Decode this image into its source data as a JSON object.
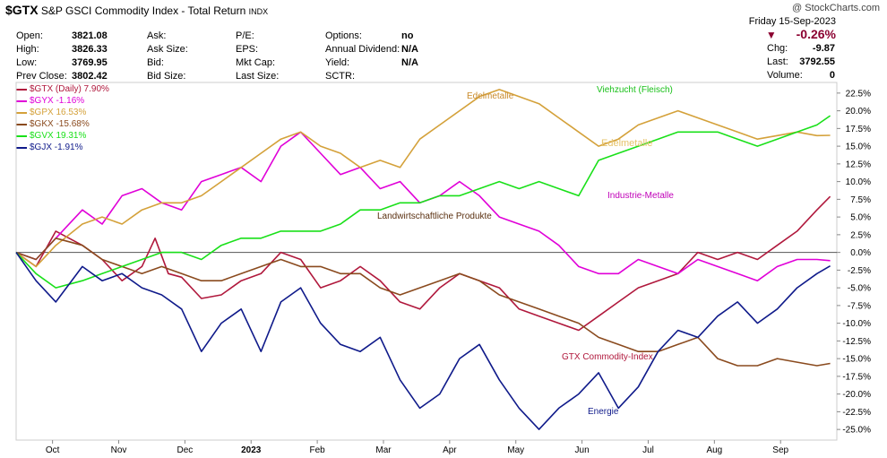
{
  "header": {
    "symbol": "$GTX",
    "name": "S&P GSCI Commodity Index - Total Return",
    "exchange": "INDX",
    "watermark": "@ StockCharts.com"
  },
  "quote": {
    "fields": [
      {
        "label": "Open:",
        "value": "3821.08"
      },
      {
        "label": "High:",
        "value": "3826.33"
      },
      {
        "label": "Low:",
        "value": "3769.95"
      },
      {
        "label": "Prev Close:",
        "value": "3802.42"
      },
      {
        "label": "Ask:",
        "value": ""
      },
      {
        "label": "Ask Size:",
        "value": ""
      },
      {
        "label": "Bid:",
        "value": ""
      },
      {
        "label": "Bid Size:",
        "value": ""
      },
      {
        "label": "P/E:",
        "value": ""
      },
      {
        "label": "EPS:",
        "value": ""
      },
      {
        "label": "Mkt Cap:",
        "value": ""
      },
      {
        "label": "Last Size:",
        "value": ""
      },
      {
        "label": "Options:",
        "value": "no"
      },
      {
        "label": "Annual Dividend:",
        "value": "N/A"
      },
      {
        "label": "Yield:",
        "value": "N/A"
      },
      {
        "label": "SCTR:",
        "value": ""
      }
    ],
    "date": "Friday  15-Sep-2023",
    "change_pct": "-0.26%",
    "chg_label": "Chg:",
    "chg_value": "-9.87",
    "last_label": "Last:",
    "last_value": "3792.55",
    "volume_label": "Volume:",
    "volume_value": "0",
    "down_color": "#8b0030"
  },
  "chart_data": {
    "type": "line",
    "ylabel": "",
    "xlabel": "",
    "ylim": [
      -26.5,
      24
    ],
    "grid": false,
    "legend_position": "top-left",
    "yticks": [
      "22.5%",
      "20.0%",
      "17.5%",
      "15.0%",
      "12.5%",
      "10.0%",
      "7.5%",
      "5.0%",
      "2.5%",
      "0.0%",
      "-2.5%",
      "-5.0%",
      "-7.5%",
      "-10.0%",
      "-12.5%",
      "-15.0%",
      "-17.5%",
      "-20.0%",
      "-22.5%",
      "-25.0%"
    ],
    "ytick_values": [
      22.5,
      20,
      17.5,
      15,
      12.5,
      10,
      7.5,
      5,
      2.5,
      0,
      -2.5,
      -5,
      -7.5,
      -10,
      -12.5,
      -15,
      -17.5,
      -20,
      -22.5,
      -25
    ],
    "xlim": [
      0,
      12.4
    ],
    "xticks": [
      {
        "label": "Oct",
        "x": 0.55
      },
      {
        "label": "Nov",
        "x": 1.55
      },
      {
        "label": "Dec",
        "x": 2.55
      },
      {
        "label": "2023",
        "x": 3.55
      },
      {
        "label": "Feb",
        "x": 4.55
      },
      {
        "label": "Mar",
        "x": 5.55
      },
      {
        "label": "Apr",
        "x": 6.55
      },
      {
        "label": "May",
        "x": 7.55
      },
      {
        "label": "Jun",
        "x": 8.55
      },
      {
        "label": "Jul",
        "x": 9.55
      },
      {
        "label": "Aug",
        "x": 10.55
      },
      {
        "label": "Sep",
        "x": 11.55
      }
    ],
    "series": [
      {
        "name": "$GTX (Daily) 7.90%",
        "color": "#b0183c",
        "points": [
          [
            0,
            0
          ],
          [
            0.3,
            -2
          ],
          [
            0.6,
            3
          ],
          [
            1.0,
            1
          ],
          [
            1.3,
            -1
          ],
          [
            1.6,
            -4
          ],
          [
            1.9,
            -2
          ],
          [
            2.1,
            2
          ],
          [
            2.3,
            -3
          ],
          [
            2.5,
            -3.5
          ],
          [
            2.8,
            -6.5
          ],
          [
            3.1,
            -6
          ],
          [
            3.4,
            -4
          ],
          [
            3.7,
            -3
          ],
          [
            4.0,
            0
          ],
          [
            4.3,
            -1
          ],
          [
            4.6,
            -5
          ],
          [
            4.9,
            -4
          ],
          [
            5.2,
            -2
          ],
          [
            5.5,
            -4
          ],
          [
            5.8,
            -7
          ],
          [
            6.1,
            -8
          ],
          [
            6.4,
            -5
          ],
          [
            6.7,
            -3
          ],
          [
            7.0,
            -4
          ],
          [
            7.3,
            -5
          ],
          [
            7.6,
            -8
          ],
          [
            7.9,
            -9
          ],
          [
            8.2,
            -10
          ],
          [
            8.5,
            -11
          ],
          [
            8.8,
            -9
          ],
          [
            9.1,
            -7
          ],
          [
            9.4,
            -5
          ],
          [
            9.7,
            -4
          ],
          [
            10.0,
            -3
          ],
          [
            10.3,
            0
          ],
          [
            10.6,
            -1
          ],
          [
            10.9,
            0
          ],
          [
            11.2,
            -1
          ],
          [
            11.5,
            1
          ],
          [
            11.8,
            3
          ],
          [
            12.1,
            6
          ],
          [
            12.3,
            7.9
          ]
        ]
      },
      {
        "name": "$GYX -1.16%",
        "color": "#e000d8",
        "points": [
          [
            0,
            0
          ],
          [
            0.3,
            -1
          ],
          [
            0.6,
            2
          ],
          [
            1.0,
            6
          ],
          [
            1.3,
            4
          ],
          [
            1.6,
            8
          ],
          [
            1.9,
            9
          ],
          [
            2.2,
            7
          ],
          [
            2.5,
            6
          ],
          [
            2.8,
            10
          ],
          [
            3.1,
            11
          ],
          [
            3.4,
            12
          ],
          [
            3.7,
            10
          ],
          [
            4.0,
            15
          ],
          [
            4.3,
            17
          ],
          [
            4.6,
            14
          ],
          [
            4.9,
            11
          ],
          [
            5.2,
            12
          ],
          [
            5.5,
            9
          ],
          [
            5.8,
            10
          ],
          [
            6.1,
            7
          ],
          [
            6.4,
            8
          ],
          [
            6.7,
            10
          ],
          [
            7.0,
            8
          ],
          [
            7.3,
            5
          ],
          [
            7.6,
            4
          ],
          [
            7.9,
            3
          ],
          [
            8.2,
            1
          ],
          [
            8.5,
            -2
          ],
          [
            8.8,
            -3
          ],
          [
            9.1,
            -3
          ],
          [
            9.4,
            -1
          ],
          [
            9.7,
            -2
          ],
          [
            10.0,
            -3
          ],
          [
            10.3,
            -1
          ],
          [
            10.6,
            -2
          ],
          [
            10.9,
            -3
          ],
          [
            11.2,
            -4
          ],
          [
            11.5,
            -2
          ],
          [
            11.8,
            -1
          ],
          [
            12.1,
            -1
          ],
          [
            12.3,
            -1.16
          ]
        ]
      },
      {
        "name": "$GPX 16.53%",
        "color": "#d4a13a",
        "points": [
          [
            0,
            0
          ],
          [
            0.3,
            -2
          ],
          [
            0.6,
            1
          ],
          [
            1.0,
            4
          ],
          [
            1.3,
            5
          ],
          [
            1.6,
            4
          ],
          [
            1.9,
            6
          ],
          [
            2.2,
            7
          ],
          [
            2.5,
            7
          ],
          [
            2.8,
            8
          ],
          [
            3.1,
            10
          ],
          [
            3.4,
            12
          ],
          [
            3.7,
            14
          ],
          [
            4.0,
            16
          ],
          [
            4.3,
            17
          ],
          [
            4.6,
            15
          ],
          [
            4.9,
            14
          ],
          [
            5.2,
            12
          ],
          [
            5.5,
            13
          ],
          [
            5.8,
            12
          ],
          [
            6.1,
            16
          ],
          [
            6.4,
            18
          ],
          [
            6.7,
            20
          ],
          [
            7.0,
            22
          ],
          [
            7.3,
            23
          ],
          [
            7.6,
            22
          ],
          [
            7.9,
            21
          ],
          [
            8.2,
            19
          ],
          [
            8.5,
            17
          ],
          [
            8.8,
            15
          ],
          [
            9.1,
            16
          ],
          [
            9.4,
            18
          ],
          [
            9.7,
            19
          ],
          [
            10.0,
            20
          ],
          [
            10.3,
            19
          ],
          [
            10.6,
            18
          ],
          [
            10.9,
            17
          ],
          [
            11.2,
            16
          ],
          [
            11.5,
            16.5
          ],
          [
            11.8,
            17
          ],
          [
            12.1,
            16.5
          ],
          [
            12.3,
            16.53
          ]
        ]
      },
      {
        "name": "$GKX -15.68%",
        "color": "#8a4a1e",
        "points": [
          [
            0,
            0
          ],
          [
            0.3,
            -1
          ],
          [
            0.6,
            2
          ],
          [
            1.0,
            1
          ],
          [
            1.3,
            -1
          ],
          [
            1.6,
            -2
          ],
          [
            1.9,
            -3
          ],
          [
            2.2,
            -2
          ],
          [
            2.5,
            -3
          ],
          [
            2.8,
            -4
          ],
          [
            3.1,
            -4
          ],
          [
            3.4,
            -3
          ],
          [
            3.7,
            -2
          ],
          [
            4.0,
            -1
          ],
          [
            4.3,
            -2
          ],
          [
            4.6,
            -2
          ],
          [
            4.9,
            -3
          ],
          [
            5.2,
            -3
          ],
          [
            5.5,
            -5
          ],
          [
            5.8,
            -6
          ],
          [
            6.1,
            -5
          ],
          [
            6.4,
            -4
          ],
          [
            6.7,
            -3
          ],
          [
            7.0,
            -4
          ],
          [
            7.3,
            -6
          ],
          [
            7.6,
            -7
          ],
          [
            7.9,
            -8
          ],
          [
            8.2,
            -9
          ],
          [
            8.5,
            -10
          ],
          [
            8.8,
            -12
          ],
          [
            9.1,
            -13
          ],
          [
            9.4,
            -14
          ],
          [
            9.7,
            -14
          ],
          [
            10.0,
            -13
          ],
          [
            10.3,
            -12
          ],
          [
            10.6,
            -15
          ],
          [
            10.9,
            -16
          ],
          [
            11.2,
            -16
          ],
          [
            11.5,
            -15
          ],
          [
            11.8,
            -15.5
          ],
          [
            12.1,
            -16
          ],
          [
            12.3,
            -15.68
          ]
        ]
      },
      {
        "name": "$GVX 19.31%",
        "color": "#19e019",
        "points": [
          [
            0,
            0
          ],
          [
            0.3,
            -3
          ],
          [
            0.6,
            -5
          ],
          [
            1.0,
            -4
          ],
          [
            1.3,
            -3
          ],
          [
            1.6,
            -2
          ],
          [
            1.9,
            -1
          ],
          [
            2.2,
            0
          ],
          [
            2.5,
            0
          ],
          [
            2.8,
            -1
          ],
          [
            3.1,
            1
          ],
          [
            3.4,
            2
          ],
          [
            3.7,
            2
          ],
          [
            4.0,
            3
          ],
          [
            4.3,
            3
          ],
          [
            4.6,
            3
          ],
          [
            4.9,
            4
          ],
          [
            5.2,
            6
          ],
          [
            5.5,
            6
          ],
          [
            5.8,
            7
          ],
          [
            6.1,
            7
          ],
          [
            6.4,
            8
          ],
          [
            6.7,
            8
          ],
          [
            7.0,
            9
          ],
          [
            7.3,
            10
          ],
          [
            7.6,
            9
          ],
          [
            7.9,
            10
          ],
          [
            8.2,
            9
          ],
          [
            8.5,
            8
          ],
          [
            8.8,
            13
          ],
          [
            9.1,
            14
          ],
          [
            9.4,
            15
          ],
          [
            9.7,
            16
          ],
          [
            10.0,
            17
          ],
          [
            10.3,
            17
          ],
          [
            10.6,
            17
          ],
          [
            10.9,
            16
          ],
          [
            11.2,
            15
          ],
          [
            11.5,
            16
          ],
          [
            11.8,
            17
          ],
          [
            12.1,
            18
          ],
          [
            12.3,
            19.31
          ]
        ]
      },
      {
        "name": "$GJX -1.91%",
        "color": "#0f1a8a",
        "points": [
          [
            0,
            0
          ],
          [
            0.3,
            -4
          ],
          [
            0.6,
            -7
          ],
          [
            1.0,
            -2
          ],
          [
            1.3,
            -4
          ],
          [
            1.6,
            -3
          ],
          [
            1.9,
            -5
          ],
          [
            2.2,
            -6
          ],
          [
            2.5,
            -8
          ],
          [
            2.8,
            -14
          ],
          [
            3.1,
            -10
          ],
          [
            3.4,
            -8
          ],
          [
            3.7,
            -14
          ],
          [
            4.0,
            -7
          ],
          [
            4.3,
            -5
          ],
          [
            4.6,
            -10
          ],
          [
            4.9,
            -13
          ],
          [
            5.2,
            -14
          ],
          [
            5.5,
            -12
          ],
          [
            5.8,
            -18
          ],
          [
            6.1,
            -22
          ],
          [
            6.4,
            -20
          ],
          [
            6.7,
            -15
          ],
          [
            7.0,
            -13
          ],
          [
            7.3,
            -18
          ],
          [
            7.6,
            -22
          ],
          [
            7.9,
            -25
          ],
          [
            8.2,
            -22
          ],
          [
            8.5,
            -20
          ],
          [
            8.8,
            -17
          ],
          [
            9.1,
            -22
          ],
          [
            9.4,
            -19
          ],
          [
            9.7,
            -14
          ],
          [
            10.0,
            -11
          ],
          [
            10.3,
            -12
          ],
          [
            10.6,
            -9
          ],
          [
            10.9,
            -7
          ],
          [
            11.2,
            -10
          ],
          [
            11.5,
            -8
          ],
          [
            11.8,
            -5
          ],
          [
            12.1,
            -3
          ],
          [
            12.3,
            -1.91
          ]
        ]
      }
    ],
    "annotations": [
      {
        "text": "Edelmetalle",
        "color": "#c98a2a"
      },
      {
        "text": "Viehzucht (Fleisch)",
        "color": "#19c019"
      },
      {
        "text": "Edelmetalle",
        "color": "#e6c36a"
      },
      {
        "text": "Industrie-Metalle",
        "color": "#c000b8"
      },
      {
        "text": "Landwirtschaftliche Produkte",
        "color": "#5a3010"
      },
      {
        "text": "GTX Commodity-Index",
        "color": "#b0183c"
      },
      {
        "text": "Energie",
        "color": "#0f1a8a"
      }
    ]
  }
}
